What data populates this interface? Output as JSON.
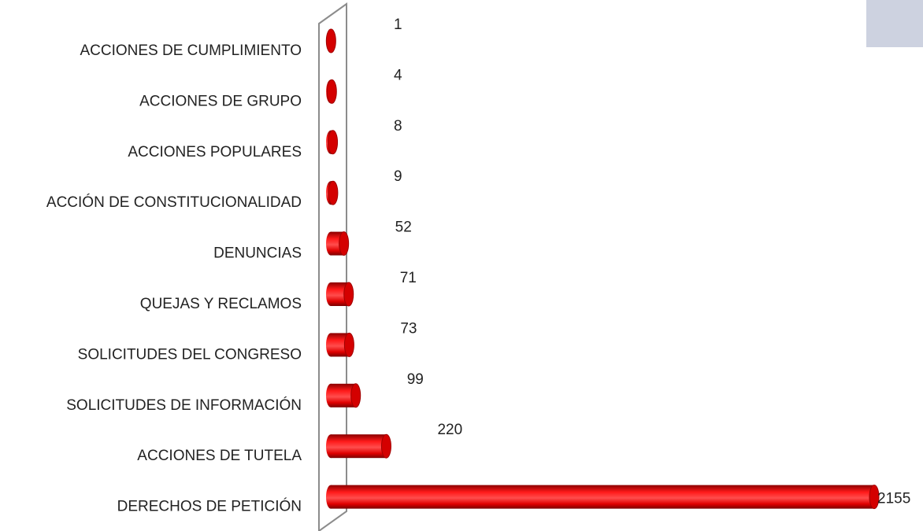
{
  "chart_data": {
    "type": "bar",
    "orientation": "horizontal",
    "color": "#ff0000",
    "categories": [
      "ACCIONES DE CUMPLIMIENTO",
      "ACCIONES DE GRUPO",
      "ACCIONES POPULARES",
      "ACCIÓN DE CONSTITUCIONALIDAD",
      "DENUNCIAS",
      "QUEJAS Y RECLAMOS",
      "SOLICITUDES DEL CONGRESO",
      "SOLICITUDES DE INFORMACIÓN",
      "ACCIONES DE TUTELA",
      "DERECHOS DE PETICIÓN"
    ],
    "values": [
      1,
      4,
      8,
      9,
      52,
      71,
      73,
      99,
      220,
      2155
    ]
  }
}
